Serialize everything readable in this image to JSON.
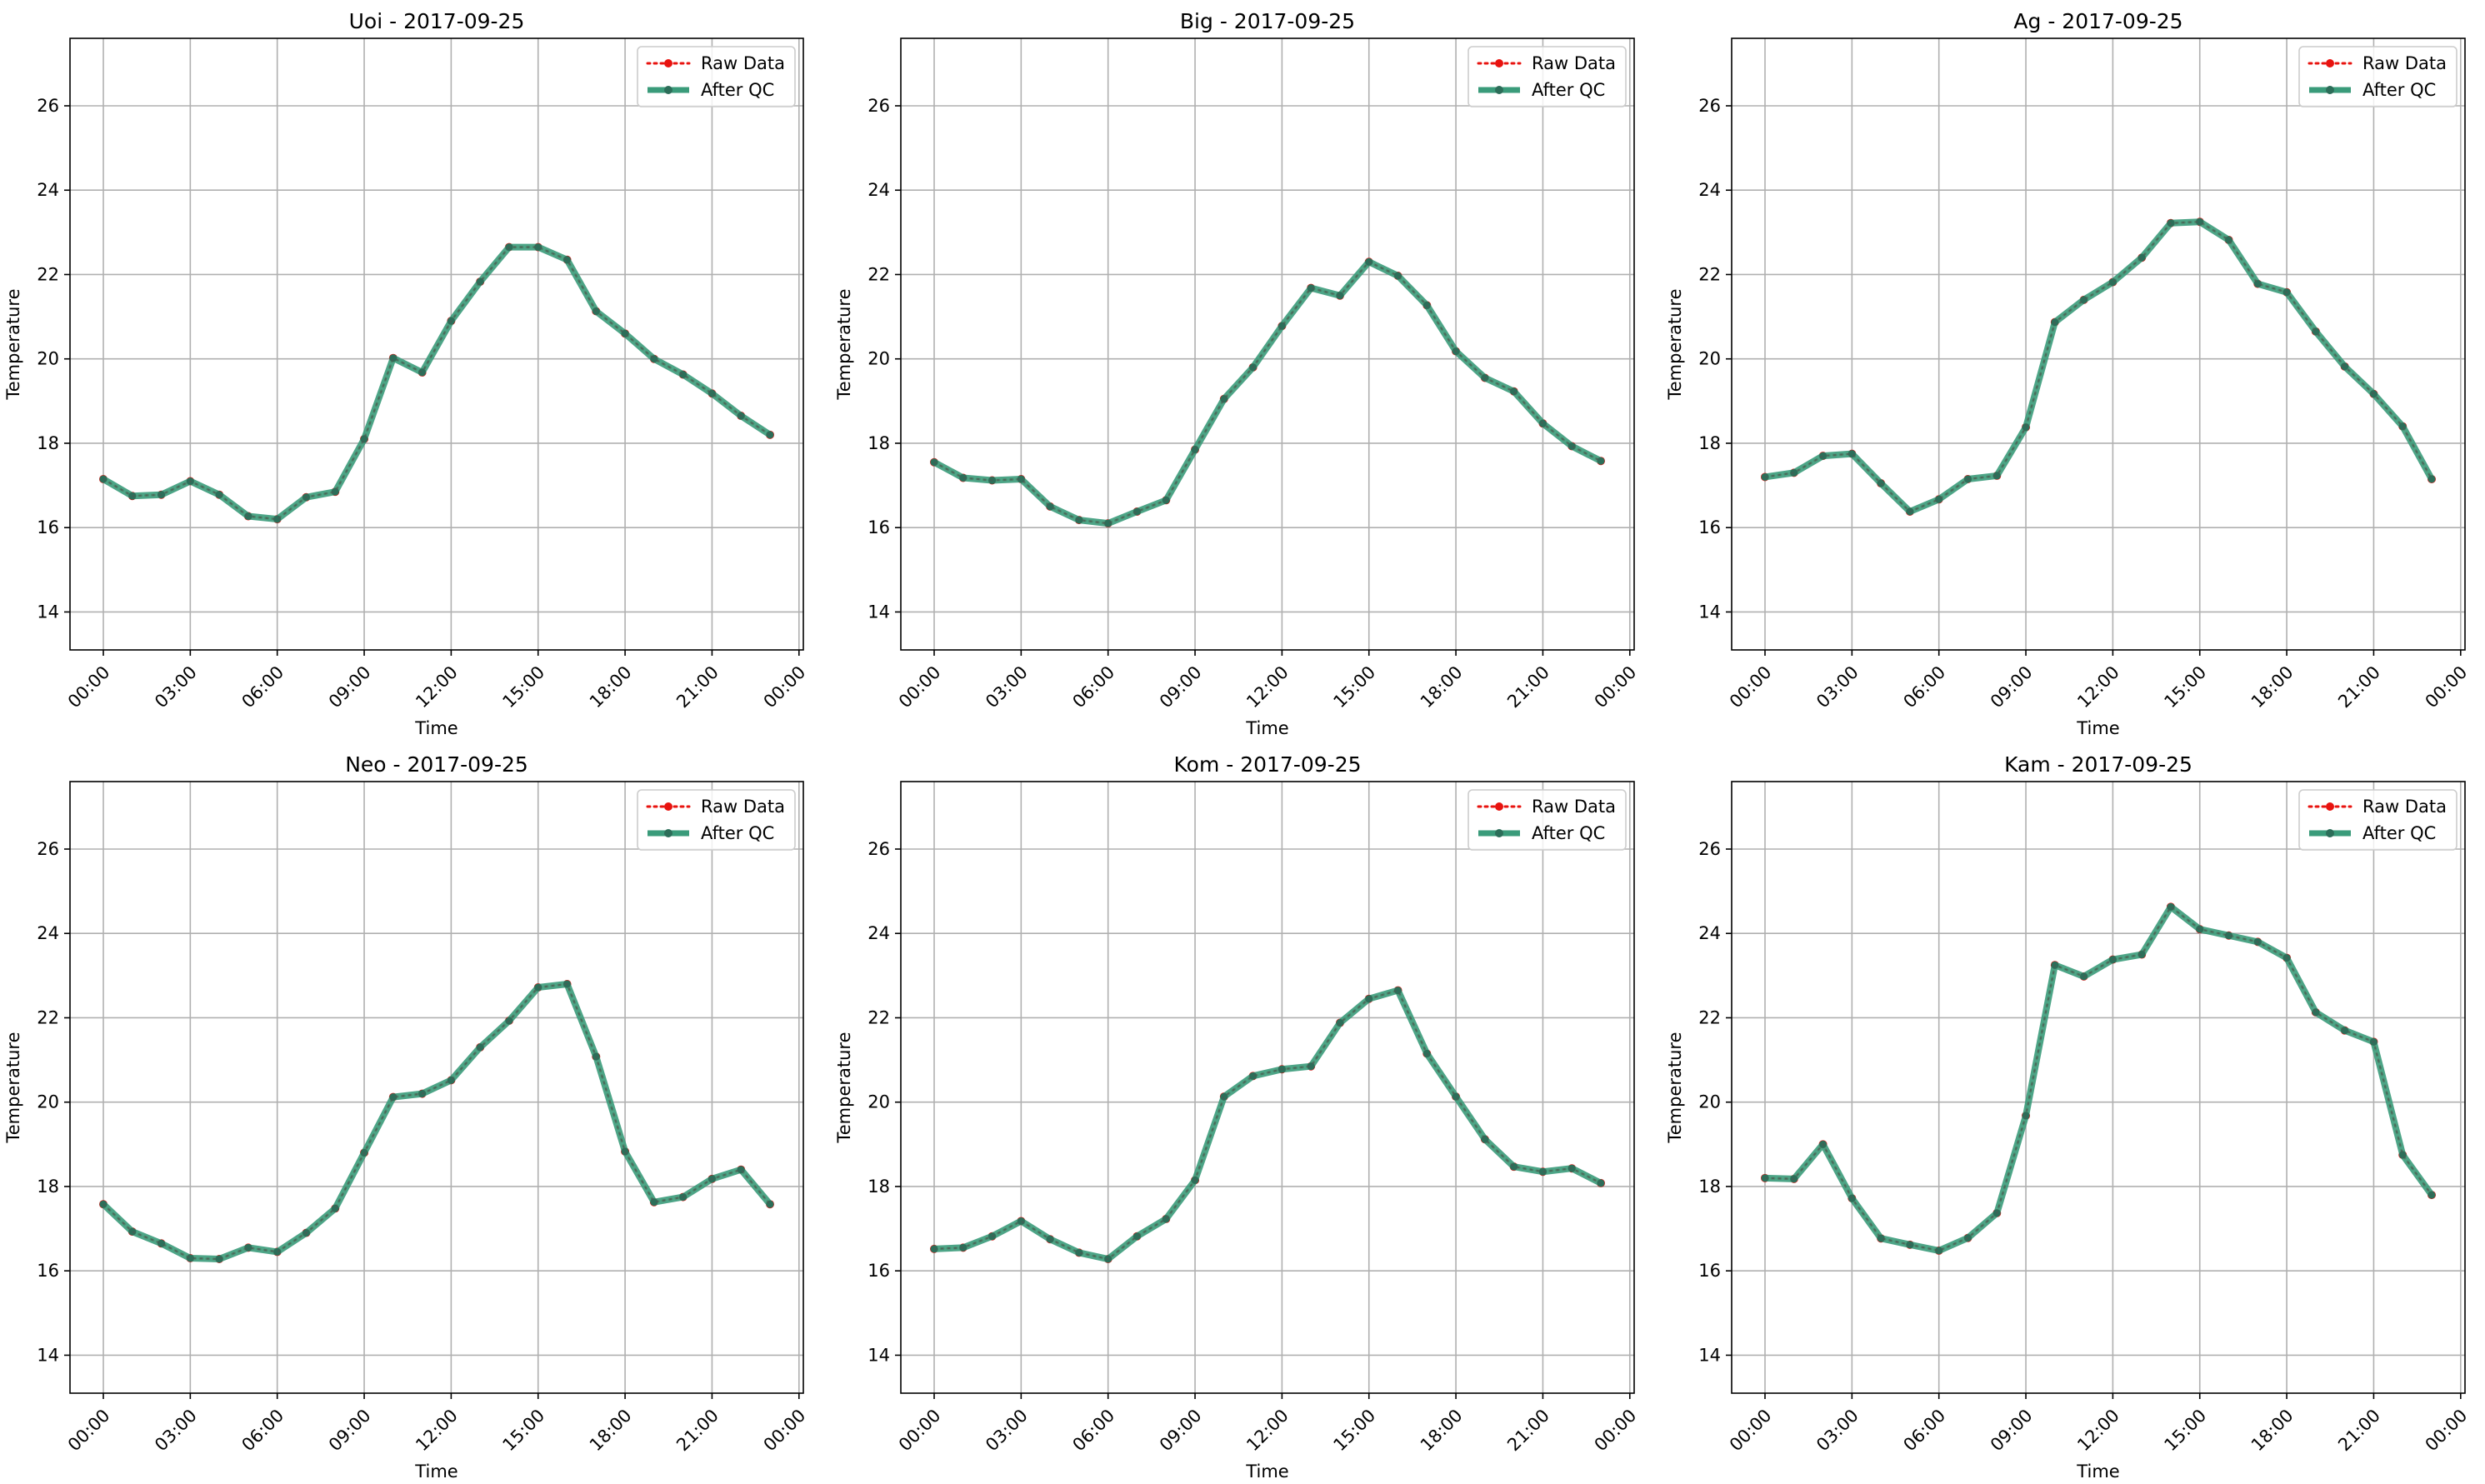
{
  "chart_data": [
    {
      "type": "line",
      "title": "Uoi - 2017-09-25",
      "xlabel": "Time",
      "ylabel": "Temperature",
      "x_tick_labels": [
        "00:00",
        "03:00",
        "06:00",
        "09:00",
        "12:00",
        "15:00",
        "18:00",
        "21:00",
        "00:00"
      ],
      "y_ticks": [
        14,
        16,
        18,
        20,
        22,
        24,
        26
      ],
      "ylim": [
        13.1,
        27.6
      ],
      "xlim_hours": [
        -1.15,
        24.15
      ],
      "grid": true,
      "legend_position": "top-right",
      "hours": [
        0,
        1,
        2,
        3,
        4,
        5,
        6,
        7,
        8,
        9,
        10,
        11,
        12,
        13,
        14,
        15,
        16,
        17,
        18,
        19,
        20,
        21,
        22,
        23
      ],
      "series": [
        {
          "name": "Raw Data",
          "color": "#e8130f",
          "values": [
            17.15,
            16.75,
            16.78,
            17.1,
            16.78,
            16.27,
            16.2,
            16.72,
            16.85,
            18.1,
            20.02,
            19.68,
            20.9,
            21.83,
            22.65,
            22.65,
            22.35,
            21.13,
            20.6,
            20.0,
            19.63,
            19.18,
            18.65,
            18.2
          ]
        },
        {
          "name": "After QC",
          "color": "#3a9b7a",
          "values": [
            17.15,
            16.75,
            16.78,
            17.1,
            16.78,
            16.27,
            16.2,
            16.72,
            16.85,
            18.1,
            20.02,
            19.68,
            20.9,
            21.83,
            22.65,
            22.65,
            22.35,
            21.13,
            20.6,
            20.0,
            19.63,
            19.18,
            18.65,
            18.2
          ]
        }
      ]
    },
    {
      "type": "line",
      "title": "Big - 2017-09-25",
      "xlabel": "Time",
      "ylabel": "Temperature",
      "x_tick_labels": [
        "00:00",
        "03:00",
        "06:00",
        "09:00",
        "12:00",
        "15:00",
        "18:00",
        "21:00",
        "00:00"
      ],
      "y_ticks": [
        14,
        16,
        18,
        20,
        22,
        24,
        26
      ],
      "ylim": [
        13.1,
        27.6
      ],
      "xlim_hours": [
        -1.15,
        24.15
      ],
      "grid": true,
      "legend_position": "top-right",
      "hours": [
        0,
        1,
        2,
        3,
        4,
        5,
        6,
        7,
        8,
        9,
        10,
        11,
        12,
        13,
        14,
        15,
        16,
        17,
        18,
        19,
        20,
        21,
        22,
        23
      ],
      "series": [
        {
          "name": "Raw Data",
          "color": "#e8130f",
          "values": [
            17.55,
            17.18,
            17.12,
            17.15,
            16.5,
            16.18,
            16.1,
            16.38,
            16.65,
            17.85,
            19.05,
            19.8,
            20.78,
            21.68,
            21.5,
            22.3,
            21.97,
            21.27,
            20.18,
            19.55,
            19.23,
            18.47,
            17.93,
            17.58
          ]
        },
        {
          "name": "After QC",
          "color": "#3a9b7a",
          "values": [
            17.55,
            17.18,
            17.12,
            17.15,
            16.5,
            16.18,
            16.1,
            16.38,
            16.65,
            17.85,
            19.05,
            19.8,
            20.78,
            21.68,
            21.5,
            22.3,
            21.97,
            21.27,
            20.18,
            19.55,
            19.23,
            18.47,
            17.93,
            17.58
          ]
        }
      ]
    },
    {
      "type": "line",
      "title": "Ag - 2017-09-25",
      "xlabel": "Time",
      "ylabel": "Temperature",
      "x_tick_labels": [
        "00:00",
        "03:00",
        "06:00",
        "09:00",
        "12:00",
        "15:00",
        "18:00",
        "21:00",
        "00:00"
      ],
      "y_ticks": [
        14,
        16,
        18,
        20,
        22,
        24,
        26
      ],
      "ylim": [
        13.1,
        27.6
      ],
      "xlim_hours": [
        -1.15,
        24.15
      ],
      "grid": true,
      "legend_position": "top-right",
      "hours": [
        0,
        1,
        2,
        3,
        4,
        5,
        6,
        7,
        8,
        9,
        10,
        11,
        12,
        13,
        14,
        15,
        16,
        17,
        18,
        19,
        20,
        21,
        22,
        23
      ],
      "series": [
        {
          "name": "Raw Data",
          "color": "#e8130f",
          "values": [
            17.2,
            17.3,
            17.7,
            17.75,
            17.05,
            16.38,
            16.67,
            17.15,
            17.23,
            18.38,
            20.87,
            21.4,
            21.82,
            22.4,
            23.22,
            23.25,
            22.82,
            21.78,
            21.58,
            20.65,
            19.82,
            19.17,
            18.4,
            17.15
          ]
        },
        {
          "name": "After QC",
          "color": "#3a9b7a",
          "values": [
            17.2,
            17.3,
            17.7,
            17.75,
            17.05,
            16.38,
            16.67,
            17.15,
            17.23,
            18.38,
            20.87,
            21.4,
            21.82,
            22.4,
            23.22,
            23.25,
            22.82,
            21.78,
            21.58,
            20.65,
            19.82,
            19.17,
            18.4,
            17.15
          ]
        }
      ]
    },
    {
      "type": "line",
      "title": "Neo - 2017-09-25",
      "xlabel": "Time",
      "ylabel": "Temperature",
      "x_tick_labels": [
        "00:00",
        "03:00",
        "06:00",
        "09:00",
        "12:00",
        "15:00",
        "18:00",
        "21:00",
        "00:00"
      ],
      "y_ticks": [
        14,
        16,
        18,
        20,
        22,
        24,
        26
      ],
      "ylim": [
        13.1,
        27.6
      ],
      "xlim_hours": [
        -1.15,
        24.15
      ],
      "grid": true,
      "legend_position": "top-right",
      "hours": [
        0,
        1,
        2,
        3,
        4,
        5,
        6,
        7,
        8,
        9,
        10,
        11,
        12,
        13,
        14,
        15,
        16,
        17,
        18,
        19,
        20,
        21,
        22,
        23
      ],
      "series": [
        {
          "name": "Raw Data",
          "color": "#e8130f",
          "values": [
            17.58,
            16.93,
            16.65,
            16.3,
            16.28,
            16.55,
            16.45,
            16.9,
            17.48,
            18.8,
            20.12,
            20.2,
            20.52,
            21.3,
            21.93,
            22.72,
            22.8,
            21.08,
            18.83,
            17.63,
            17.75,
            18.18,
            18.4,
            17.58
          ]
        },
        {
          "name": "After QC",
          "color": "#3a9b7a",
          "values": [
            17.58,
            16.93,
            16.65,
            16.3,
            16.28,
            16.55,
            16.45,
            16.9,
            17.48,
            18.8,
            20.12,
            20.2,
            20.52,
            21.3,
            21.93,
            22.72,
            22.8,
            21.08,
            18.83,
            17.63,
            17.75,
            18.18,
            18.4,
            17.58
          ]
        }
      ]
    },
    {
      "type": "line",
      "title": "Kom - 2017-09-25",
      "xlabel": "Time",
      "ylabel": "Temperature",
      "x_tick_labels": [
        "00:00",
        "03:00",
        "06:00",
        "09:00",
        "12:00",
        "15:00",
        "18:00",
        "21:00",
        "00:00"
      ],
      "y_ticks": [
        14,
        16,
        18,
        20,
        22,
        24,
        26
      ],
      "ylim": [
        13.1,
        27.6
      ],
      "xlim_hours": [
        -1.15,
        24.15
      ],
      "grid": true,
      "legend_position": "top-right",
      "hours": [
        0,
        1,
        2,
        3,
        4,
        5,
        6,
        7,
        8,
        9,
        10,
        11,
        12,
        13,
        14,
        15,
        16,
        17,
        18,
        19,
        20,
        21,
        22,
        23
      ],
      "series": [
        {
          "name": "Raw Data",
          "color": "#e8130f",
          "values": [
            16.52,
            16.55,
            16.82,
            17.18,
            16.75,
            16.43,
            16.28,
            16.82,
            17.23,
            18.15,
            20.13,
            20.62,
            20.78,
            20.85,
            21.88,
            22.45,
            22.65,
            21.15,
            20.13,
            19.12,
            18.47,
            18.35,
            18.43,
            18.08
          ]
        },
        {
          "name": "After QC",
          "color": "#3a9b7a",
          "values": [
            16.52,
            16.55,
            16.82,
            17.18,
            16.75,
            16.43,
            16.28,
            16.82,
            17.23,
            18.15,
            20.13,
            20.62,
            20.78,
            20.85,
            21.88,
            22.45,
            22.65,
            21.15,
            20.13,
            19.12,
            18.47,
            18.35,
            18.43,
            18.08
          ]
        }
      ]
    },
    {
      "type": "line",
      "title": "Kam - 2017-09-25",
      "xlabel": "Time",
      "ylabel": "Temperature",
      "x_tick_labels": [
        "00:00",
        "03:00",
        "06:00",
        "09:00",
        "12:00",
        "15:00",
        "18:00",
        "21:00",
        "00:00"
      ],
      "y_ticks": [
        14,
        16,
        18,
        20,
        22,
        24,
        26
      ],
      "ylim": [
        13.1,
        27.6
      ],
      "xlim_hours": [
        -1.15,
        24.15
      ],
      "grid": true,
      "legend_position": "top-right",
      "hours": [
        0,
        1,
        2,
        3,
        4,
        5,
        6,
        7,
        8,
        9,
        10,
        11,
        12,
        13,
        14,
        15,
        16,
        17,
        18,
        19,
        20,
        21,
        22,
        23
      ],
      "series": [
        {
          "name": "Raw Data",
          "color": "#e8130f",
          "values": [
            18.2,
            18.18,
            19.0,
            17.72,
            16.77,
            16.62,
            16.48,
            16.78,
            17.37,
            19.68,
            23.25,
            22.98,
            23.38,
            23.5,
            24.63,
            24.1,
            23.95,
            23.8,
            23.42,
            22.13,
            21.7,
            21.43,
            18.75,
            17.8
          ]
        },
        {
          "name": "After QC",
          "color": "#3a9b7a",
          "values": [
            18.2,
            18.18,
            19.0,
            17.72,
            16.77,
            16.62,
            16.48,
            16.78,
            17.37,
            19.68,
            23.25,
            22.98,
            23.38,
            23.5,
            24.63,
            24.1,
            23.95,
            23.8,
            23.42,
            22.13,
            21.7,
            21.43,
            18.75,
            17.8
          ]
        }
      ]
    }
  ]
}
